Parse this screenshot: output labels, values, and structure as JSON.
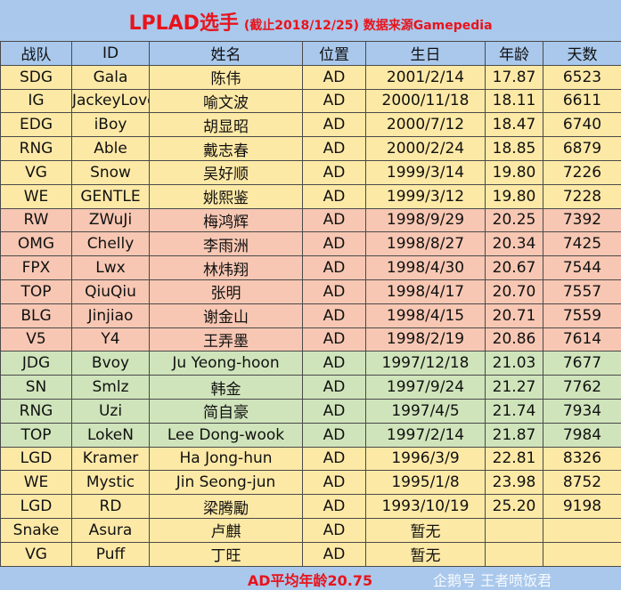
{
  "title": {
    "main": "LPLAD选手",
    "note": "(截止2018/12/25) 数据来源Gamepedia"
  },
  "headers": [
    "战队",
    "ID",
    "姓名",
    "位置",
    "生日",
    "年龄",
    "天数"
  ],
  "colors": {
    "header": "#a9c8ec",
    "yellow": "#fde9a6",
    "pink": "#f7c7b3",
    "green": "#cfe4bb",
    "title": "#e8141c"
  },
  "rows": [
    [
      "SDG",
      "Gala",
      "陈伟",
      "AD",
      "2001/2/14",
      "17.87",
      "6523",
      "y"
    ],
    [
      "IG",
      "JackeyLove",
      "喻文波",
      "AD",
      "2000/11/18",
      "18.11",
      "6611",
      "y"
    ],
    [
      "EDG",
      "iBoy",
      "胡显昭",
      "AD",
      "2000/7/12",
      "18.47",
      "6740",
      "y"
    ],
    [
      "RNG",
      "Able",
      "戴志春",
      "AD",
      "2000/2/24",
      "18.85",
      "6879",
      "y"
    ],
    [
      "VG",
      "Snow",
      "吴好顺",
      "AD",
      "1999/3/14",
      "19.80",
      "7226",
      "y"
    ],
    [
      "WE",
      "GENTLE",
      "姚熙鉴",
      "AD",
      "1999/3/12",
      "19.80",
      "7228",
      "y"
    ],
    [
      "RW",
      "ZWuJi",
      "梅鸿辉",
      "AD",
      "1998/9/29",
      "20.25",
      "7392",
      "p"
    ],
    [
      "OMG",
      "Chelly",
      "李雨洲",
      "AD",
      "1998/8/27",
      "20.34",
      "7425",
      "p"
    ],
    [
      "FPX",
      "Lwx",
      "林炜翔",
      "AD",
      "1998/4/30",
      "20.67",
      "7544",
      "p"
    ],
    [
      "TOP",
      "QiuQiu",
      "张明",
      "AD",
      "1998/4/17",
      "20.70",
      "7557",
      "p"
    ],
    [
      "BLG",
      "Jinjiao",
      "谢金山",
      "AD",
      "1998/4/15",
      "20.71",
      "7559",
      "p"
    ],
    [
      "V5",
      "Y4",
      "王弄墨",
      "AD",
      "1998/2/19",
      "20.86",
      "7614",
      "p"
    ],
    [
      "JDG",
      "Bvoy",
      "Ju Yeong-hoon",
      "AD",
      "1997/12/18",
      "21.03",
      "7677",
      "g"
    ],
    [
      "SN",
      "Smlz",
      "韩金",
      "AD",
      "1997/9/24",
      "21.27",
      "7762",
      "g"
    ],
    [
      "RNG",
      "Uzi",
      "简自豪",
      "AD",
      "1997/4/5",
      "21.74",
      "7934",
      "g"
    ],
    [
      "TOP",
      "LokeN",
      "Lee Dong-wook",
      "AD",
      "1997/2/14",
      "21.87",
      "7984",
      "g"
    ],
    [
      "LGD",
      "Kramer",
      "Ha Jong-hun",
      "AD",
      "1996/3/9",
      "22.81",
      "8326",
      "y"
    ],
    [
      "WE",
      "Mystic",
      "Jin Seong-jun",
      "AD",
      "1995/1/8",
      "23.98",
      "8752",
      "y"
    ],
    [
      "LGD",
      "RD",
      "梁腾勵",
      "AD",
      "1993/10/19",
      "25.20",
      "9198",
      "y"
    ],
    [
      "Snake",
      "Asura",
      "卢麒",
      "AD",
      "暂无",
      "",
      "",
      "y"
    ],
    [
      "VG",
      "Puff",
      "丁旺",
      "AD",
      "暂无",
      "",
      "",
      "y"
    ]
  ],
  "footer": "AD平均年龄20.75",
  "watermark": "企鹅号 王者喷饭君"
}
